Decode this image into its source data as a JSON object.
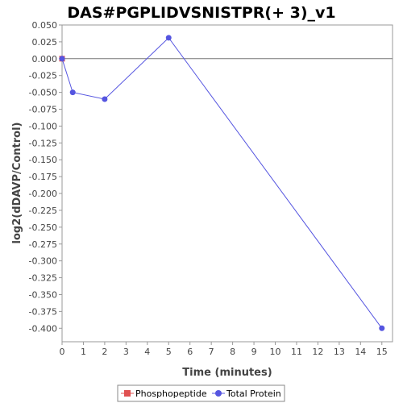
{
  "chart_data": {
    "type": "line",
    "title": "DAS#PGPLIDVSNISTPR(+ 3)_v1",
    "xlabel": "Time (minutes)",
    "ylabel": "log2(dDAVP/Control)",
    "xlim": [
      0,
      15.5
    ],
    "ylim": [
      -0.42,
      0.05
    ],
    "x_ticks": [
      0,
      1,
      2,
      3,
      4,
      5,
      6,
      7,
      8,
      9,
      10,
      11,
      12,
      13,
      14,
      15
    ],
    "y_ticks": [
      "0.050",
      "0.025",
      "0.000",
      "-0.025",
      "-0.050",
      "-0.075",
      "-0.100",
      "-0.125",
      "-0.150",
      "-0.175",
      "-0.200",
      "-0.225",
      "-0.250",
      "-0.275",
      "-0.300",
      "-0.325",
      "-0.350",
      "-0.375",
      "-0.400"
    ],
    "grid": false,
    "zero_line": true,
    "legend_position": "bottom",
    "series": [
      {
        "name": "Phosphopeptide",
        "color": "#e05050",
        "marker": "square",
        "x": [
          0
        ],
        "y": [
          0.0
        ]
      },
      {
        "name": "Total Protein",
        "color": "#5555e0",
        "marker": "circle",
        "x": [
          0,
          0.5,
          2,
          5,
          15
        ],
        "y": [
          0.0,
          -0.05,
          -0.06,
          0.031,
          -0.4
        ]
      }
    ]
  }
}
